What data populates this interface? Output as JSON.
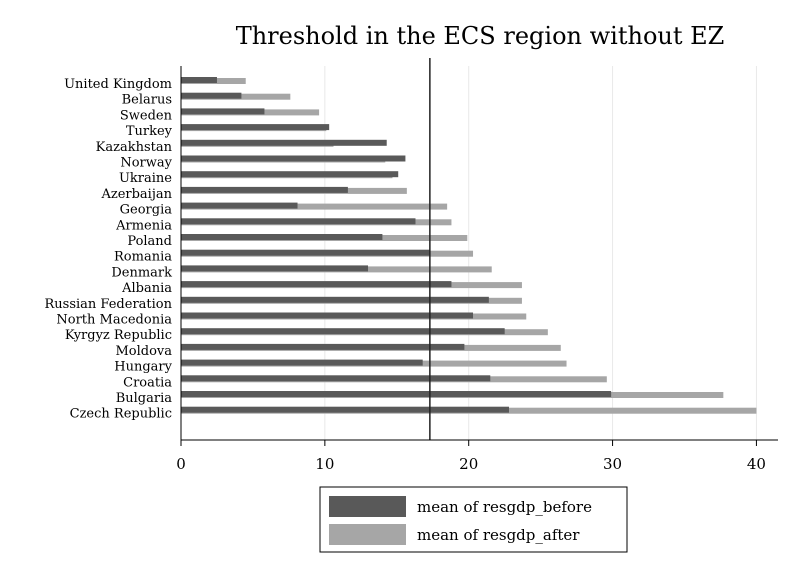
{
  "chart_data": {
    "type": "bar",
    "orientation": "horizontal",
    "title": "Threshold in the ECS region without EZ",
    "categories": [
      "United Kingdom",
      "Belarus",
      "Sweden",
      "Turkey",
      "Kazakhstan",
      "Norway",
      "Ukraine",
      "Azerbaijan",
      "Georgia",
      "Armenia",
      "Poland",
      "Romania",
      "Denmark",
      "Albania",
      "Russian Federation",
      "North Macedonia",
      "Kyrgyz Republic",
      "Moldova",
      "Hungary",
      "Croatia",
      "Bulgaria",
      "Czech Republic"
    ],
    "series": [
      {
        "name": "mean of resgdp_before",
        "color": "#595959",
        "values": [
          2.5,
          4.2,
          5.8,
          10.3,
          14.3,
          15.6,
          15.1,
          11.6,
          8.1,
          16.3,
          14.0,
          17.3,
          13.0,
          18.8,
          21.4,
          20.3,
          22.5,
          19.7,
          16.8,
          21.5,
          29.9,
          22.8
        ]
      },
      {
        "name": "mean of resgdp_after",
        "color": "#a6a6a6",
        "values": [
          4.5,
          7.6,
          9.6,
          10.1,
          10.6,
          14.2,
          14.7,
          15.7,
          18.5,
          18.8,
          19.9,
          20.3,
          21.6,
          23.7,
          23.7,
          24.0,
          25.5,
          26.4,
          26.8,
          29.6,
          37.7,
          40.0
        ]
      }
    ],
    "xlim": [
      0,
      41.5
    ],
    "xticks": [
      0,
      10,
      20,
      30,
      40
    ],
    "threshold": 17.3,
    "grid": true,
    "legend_position": "bottom"
  }
}
